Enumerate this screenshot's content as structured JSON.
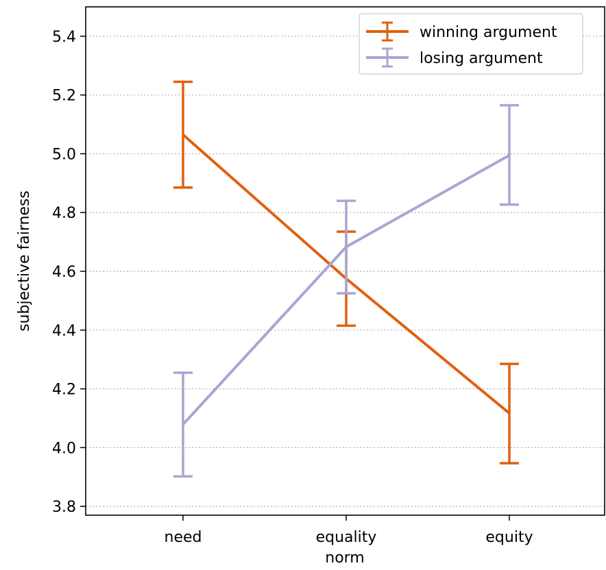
{
  "chart_data": {
    "type": "line",
    "xlabel": "norm",
    "ylabel": "subjective fairness",
    "categories": [
      "need",
      "equality",
      "equity"
    ],
    "ylim": [
      3.77,
      5.5
    ],
    "yticks": [
      "3.8",
      "4.0",
      "4.2",
      "4.4",
      "4.6",
      "4.8",
      "5.0",
      "5.2",
      "5.4"
    ],
    "grid": "horizontal dotted",
    "legend_position": "top-right",
    "series": [
      {
        "name": "winning argument",
        "color": "#e0600f",
        "values": [
          5.065,
          4.575,
          4.117
        ],
        "err_low": [
          4.885,
          4.415,
          3.947
        ],
        "err_high": [
          5.245,
          4.735,
          4.285
        ]
      },
      {
        "name": "losing argument",
        "color": "#aaa5d2",
        "values": [
          4.079,
          4.683,
          4.995
        ],
        "err_low": [
          3.902,
          4.525,
          4.827
        ],
        "err_high": [
          4.255,
          4.84,
          5.165
        ]
      }
    ]
  }
}
